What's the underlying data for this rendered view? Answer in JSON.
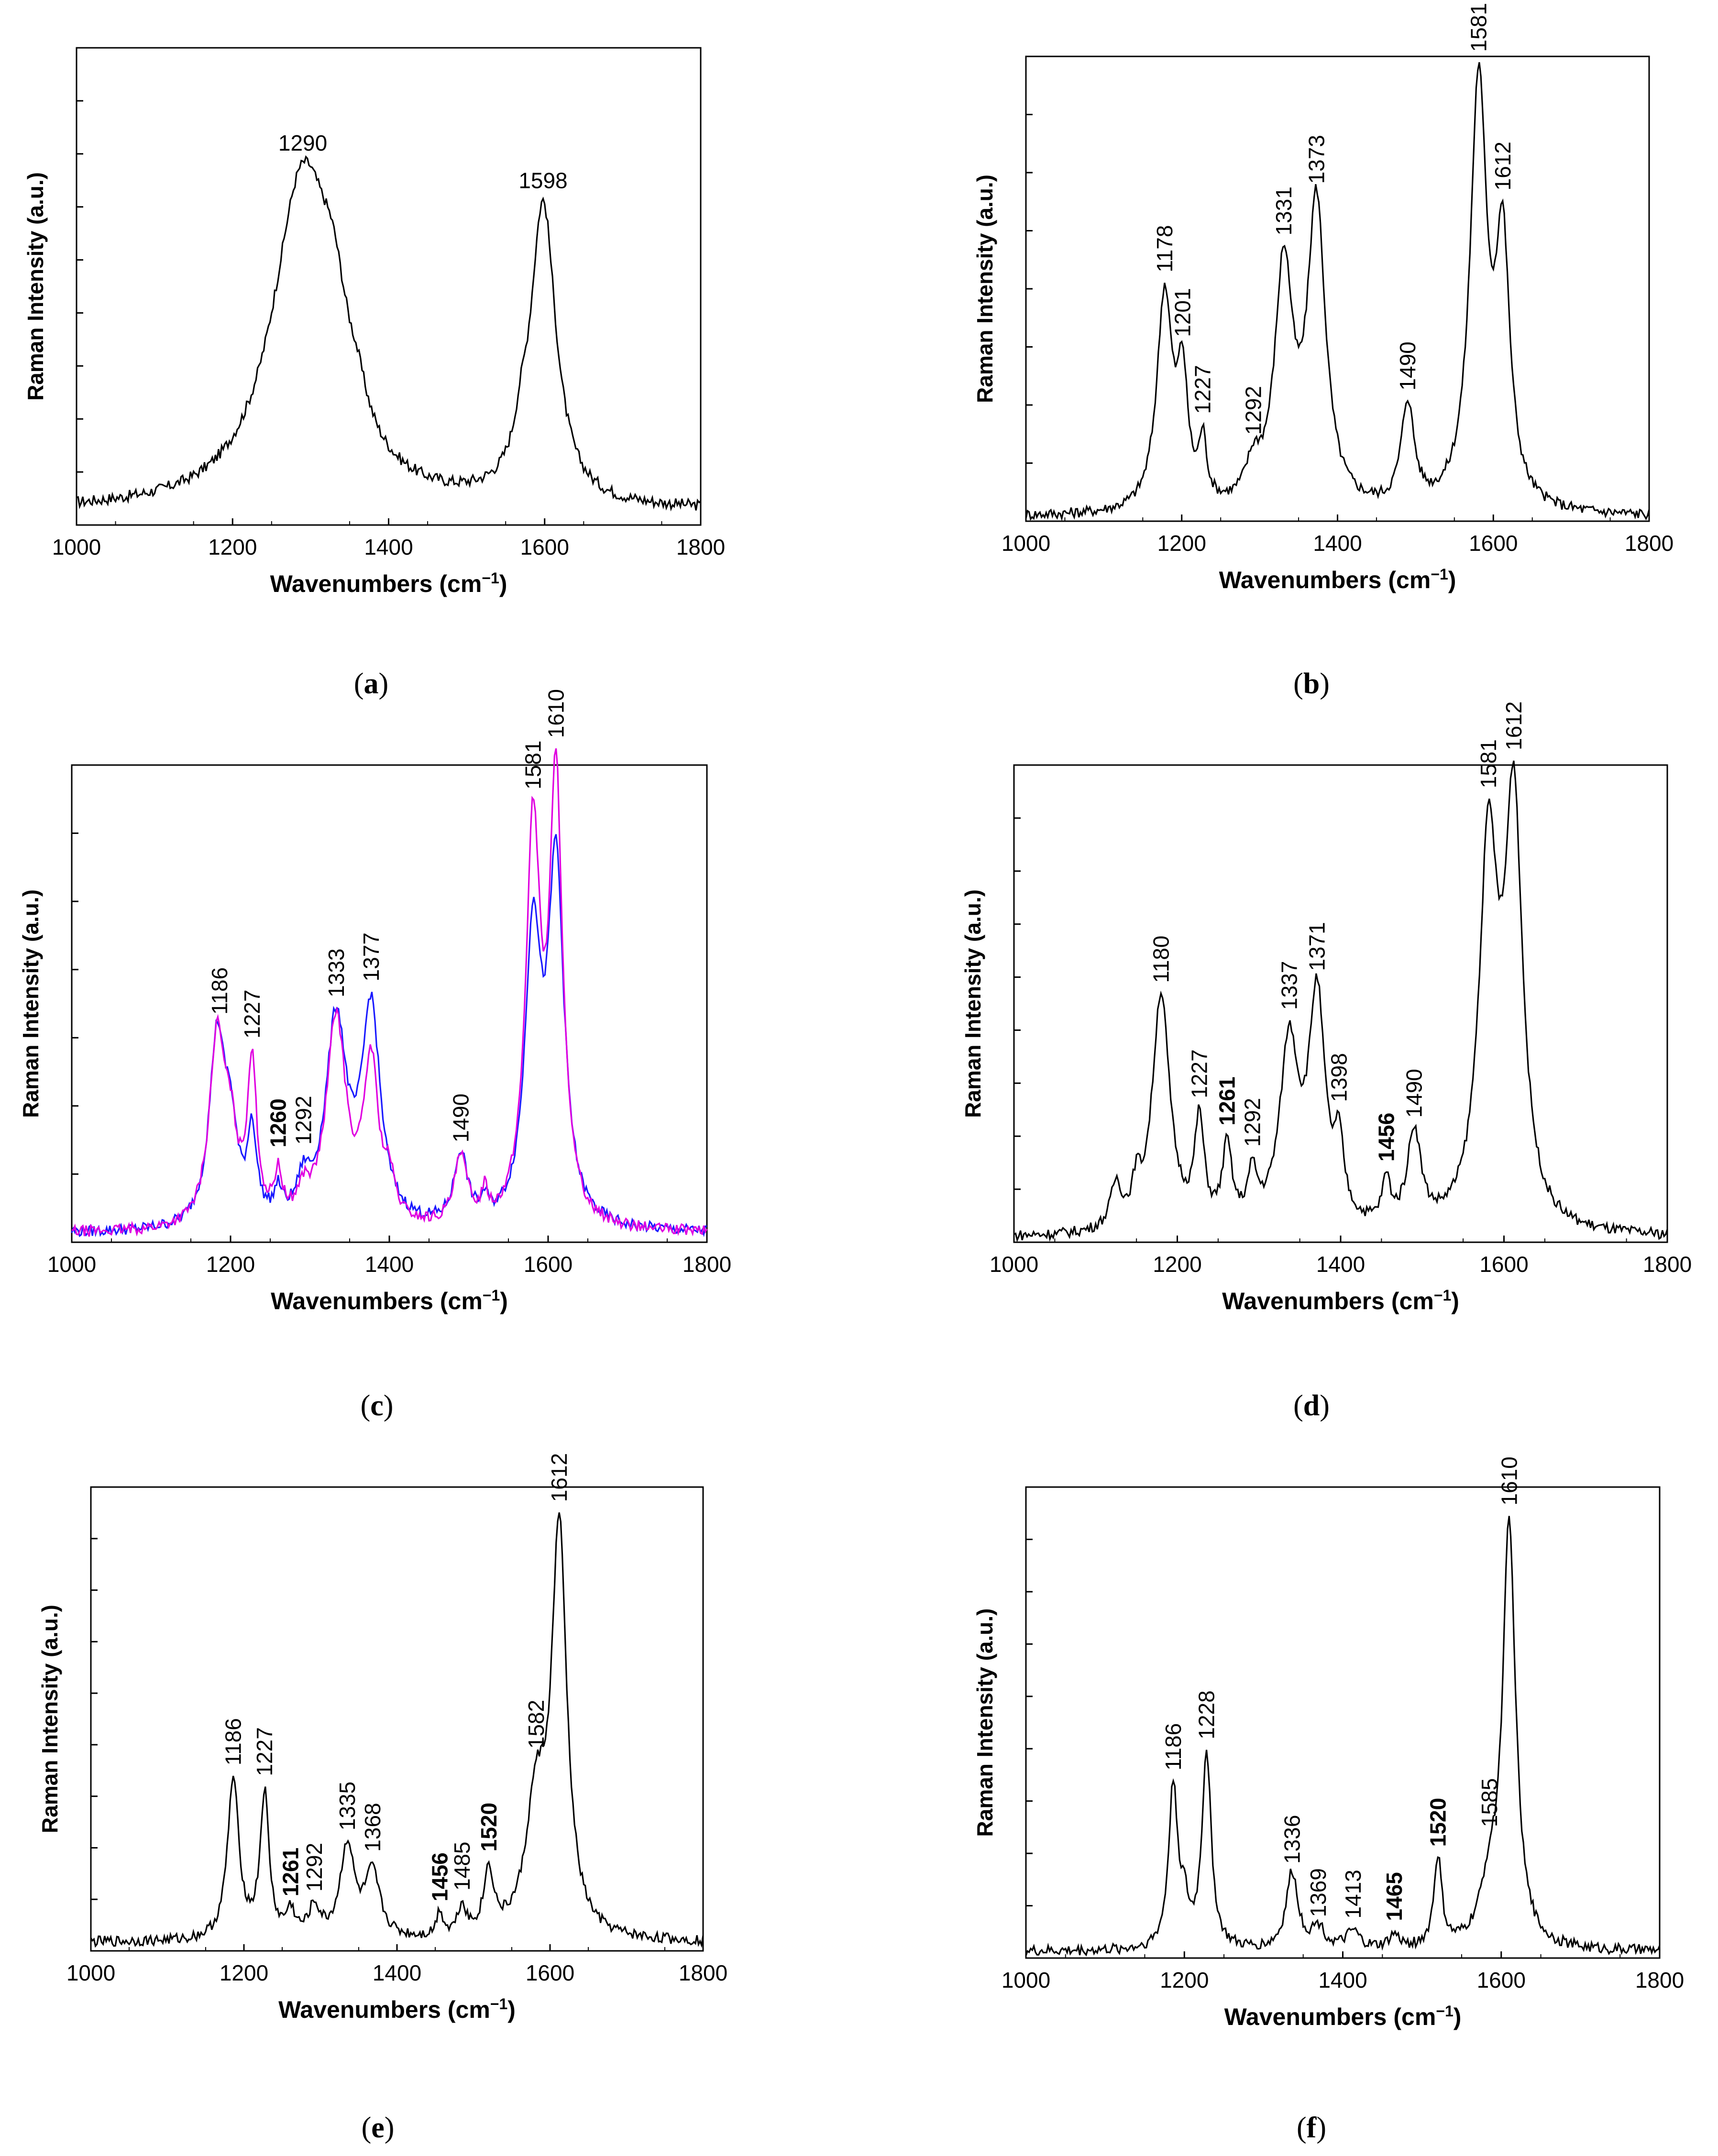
{
  "figure": {
    "panels": [
      {
        "id": "a",
        "caption_open": "(",
        "caption_letter": "a",
        "caption_close": ")"
      },
      {
        "id": "b",
        "caption_open": "(",
        "caption_letter": "b",
        "caption_close": ")"
      },
      {
        "id": "c",
        "caption_open": "(",
        "caption_letter": "c",
        "caption_close": ")"
      },
      {
        "id": "d",
        "caption_open": "(",
        "caption_letter": "d",
        "caption_close": ")"
      },
      {
        "id": "e",
        "caption_open": "(",
        "caption_letter": "e",
        "caption_close": ")"
      },
      {
        "id": "f",
        "caption_open": "(",
        "caption_letter": "f",
        "caption_close": ")"
      }
    ]
  },
  "chart_data": [
    {
      "panel": "a",
      "type": "line",
      "title": "",
      "xlabel": "Wavenumbers (cm",
      "xlabel_sup": "−1",
      "xlabel_close": ")",
      "ylabel": "Raman Intensity (a.u.)",
      "xlim": [
        1000,
        1800
      ],
      "ylim": [
        0,
        1.05
      ],
      "x_ticks": [
        1000,
        1200,
        1400,
        1600,
        1800
      ],
      "y_minor_ticks": 8,
      "series": [
        {
          "color": "#000000",
          "baseline": 0.03,
          "peaks": [
            [
              1290,
              0.72,
              48
            ],
            [
              1330,
              0.18,
              22
            ],
            [
              1360,
              0.06,
              15
            ],
            [
              1598,
              0.66,
              20
            ],
            [
              1570,
              0.06,
              10
            ]
          ]
        }
      ],
      "annotations": [
        {
          "x": 1290,
          "text": "1290",
          "bold": false,
          "vertical": false
        },
        {
          "x": 1598,
          "text": "1598",
          "bold": false,
          "vertical": false
        }
      ]
    },
    {
      "panel": "b",
      "type": "line",
      "title": "",
      "xlabel": "Wavenumbers (cm",
      "xlabel_sup": "−1",
      "xlabel_close": ")",
      "ylabel": "Raman Intensity (a.u.)",
      "xlim": [
        1000,
        1800
      ],
      "ylim": [
        0,
        1.08
      ],
      "x_ticks": [
        1000,
        1200,
        1400,
        1600,
        1800
      ],
      "y_minor_ticks": 7,
      "series": [
        {
          "color": "#000000",
          "baseline": 0.01,
          "peaks": [
            [
              1178,
              0.5,
              12
            ],
            [
              1201,
              0.28,
              8
            ],
            [
              1227,
              0.14,
              6
            ],
            [
              1292,
              0.08,
              12
            ],
            [
              1331,
              0.55,
              14
            ],
            [
              1373,
              0.7,
              14
            ],
            [
              1490,
              0.24,
              10
            ],
            [
              1581,
              0.98,
              13
            ],
            [
              1612,
              0.58,
              11
            ]
          ]
        }
      ],
      "annotations": [
        {
          "x": 1178,
          "text": "1178",
          "bold": false,
          "vertical": true
        },
        {
          "x": 1201,
          "text": "1201",
          "bold": false,
          "vertical": true
        },
        {
          "x": 1227,
          "text": "1227",
          "bold": false,
          "vertical": true
        },
        {
          "x": 1292,
          "text": "1292",
          "bold": false,
          "vertical": true
        },
        {
          "x": 1331,
          "text": "1331",
          "bold": false,
          "vertical": true
        },
        {
          "x": 1373,
          "text": "1373",
          "bold": false,
          "vertical": true
        },
        {
          "x": 1490,
          "text": "1490",
          "bold": false,
          "vertical": true
        },
        {
          "x": 1581,
          "text": "1581",
          "bold": false,
          "vertical": true
        },
        {
          "x": 1612,
          "text": "1612",
          "bold": false,
          "vertical": true
        }
      ]
    },
    {
      "panel": "c",
      "type": "line",
      "title": "",
      "xlabel": "Wavenumbers (cm",
      "xlabel_sup": "−1",
      "xlabel_close": ")",
      "ylabel": "Raman Intensity (a.u.)",
      "xlim": [
        1000,
        1800
      ],
      "ylim": [
        0,
        1.08
      ],
      "x_ticks": [
        1000,
        1200,
        1400,
        1600,
        1800
      ],
      "y_minor_ticks": 6,
      "series": [
        {
          "color": "#1a1aff",
          "baseline": 0.02,
          "peaks": [
            [
              1183,
              0.42,
              12
            ],
            [
              1200,
              0.18,
              10
            ],
            [
              1227,
              0.2,
              7
            ],
            [
              1260,
              0.06,
              6
            ],
            [
              1292,
              0.08,
              10
            ],
            [
              1333,
              0.46,
              16
            ],
            [
              1377,
              0.48,
              14
            ],
            [
              1490,
              0.16,
              10
            ],
            [
              1520,
              0.04,
              5
            ],
            [
              1581,
              0.64,
              12
            ],
            [
              1610,
              0.8,
              12
            ]
          ]
        },
        {
          "color": "#e000e0",
          "baseline": 0.02,
          "peaks": [
            [
              1183,
              0.42,
              12
            ],
            [
              1200,
              0.16,
              10
            ],
            [
              1227,
              0.36,
              7
            ],
            [
              1260,
              0.1,
              6
            ],
            [
              1292,
              0.06,
              10
            ],
            [
              1333,
              0.47,
              15
            ],
            [
              1377,
              0.36,
              11
            ],
            [
              1400,
              0.08,
              8
            ],
            [
              1490,
              0.15,
              10
            ],
            [
              1520,
              0.06,
              5
            ],
            [
              1581,
              0.88,
              11
            ],
            [
              1610,
              0.98,
              10
            ]
          ]
        }
      ],
      "annotations": [
        {
          "x": 1186,
          "text": "1186",
          "bold": false,
          "vertical": true
        },
        {
          "x": 1227,
          "text": "1227",
          "bold": false,
          "vertical": true
        },
        {
          "x": 1260,
          "text": "1260",
          "bold": true,
          "vertical": true
        },
        {
          "x": 1292,
          "text": "1292",
          "bold": false,
          "vertical": true
        },
        {
          "x": 1333,
          "text": "1333",
          "bold": false,
          "vertical": true
        },
        {
          "x": 1377,
          "text": "1377",
          "bold": false,
          "vertical": true
        },
        {
          "x": 1490,
          "text": "1490",
          "bold": false,
          "vertical": true
        },
        {
          "x": 1581,
          "text": "1581",
          "bold": false,
          "vertical": true
        },
        {
          "x": 1610,
          "text": "1610",
          "bold": false,
          "vertical": true
        }
      ]
    },
    {
      "panel": "d",
      "type": "line",
      "title": "",
      "xlabel": "Wavenumbers (cm",
      "xlabel_sup": "−1",
      "xlabel_close": ")",
      "ylabel": "Raman Intensity (a.u.)",
      "xlim": [
        1000,
        1800
      ],
      "ylim": [
        0,
        1.1
      ],
      "x_ticks": [
        1000,
        1200,
        1400,
        1600,
        1800
      ],
      "y_minor_ticks": 8,
      "series": [
        {
          "color": "#000000",
          "baseline": 0.01,
          "peaks": [
            [
              1125,
              0.1,
              8
            ],
            [
              1150,
              0.08,
              6
            ],
            [
              1180,
              0.55,
              13
            ],
            [
              1227,
              0.24,
              7
            ],
            [
              1261,
              0.18,
              7
            ],
            [
              1292,
              0.11,
              7
            ],
            [
              1337,
              0.42,
              14
            ],
            [
              1371,
              0.52,
              12
            ],
            [
              1398,
              0.16,
              7
            ],
            [
              1456,
              0.1,
              6
            ],
            [
              1490,
              0.22,
              10
            ],
            [
              1581,
              0.85,
              14
            ],
            [
              1612,
              0.95,
              13
            ]
          ]
        }
      ],
      "annotations": [
        {
          "x": 1180,
          "text": "1180",
          "bold": false,
          "vertical": true
        },
        {
          "x": 1227,
          "text": "1227",
          "bold": false,
          "vertical": true
        },
        {
          "x": 1261,
          "text": "1261",
          "bold": true,
          "vertical": true
        },
        {
          "x": 1292,
          "text": "1292",
          "bold": false,
          "vertical": true
        },
        {
          "x": 1337,
          "text": "1337",
          "bold": false,
          "vertical": true
        },
        {
          "x": 1371,
          "text": "1371",
          "bold": false,
          "vertical": true
        },
        {
          "x": 1398,
          "text": "1398",
          "bold": false,
          "vertical": true
        },
        {
          "x": 1456,
          "text": "1456",
          "bold": true,
          "vertical": true
        },
        {
          "x": 1490,
          "text": "1490",
          "bold": false,
          "vertical": true
        },
        {
          "x": 1581,
          "text": "1581",
          "bold": false,
          "vertical": true
        },
        {
          "x": 1612,
          "text": "1612",
          "bold": false,
          "vertical": true
        }
      ]
    },
    {
      "panel": "e",
      "type": "line",
      "title": "",
      "xlabel": "Wavenumbers (cm",
      "xlabel_sup": "−1",
      "xlabel_close": ")",
      "ylabel": "Raman Intensity (a.u.)",
      "xlim": [
        1000,
        1800
      ],
      "ylim": [
        0,
        1.1
      ],
      "x_ticks": [
        1000,
        1200,
        1400,
        1600,
        1800
      ],
      "y_minor_ticks": 8,
      "series": [
        {
          "color": "#000000",
          "baseline": 0.02,
          "peaks": [
            [
              1186,
              0.38,
              9
            ],
            [
              1227,
              0.34,
              7
            ],
            [
              1261,
              0.06,
              7
            ],
            [
              1292,
              0.07,
              9
            ],
            [
              1335,
              0.22,
              11
            ],
            [
              1368,
              0.15,
              12
            ],
            [
              1456,
              0.06,
              5
            ],
            [
              1485,
              0.07,
              7
            ],
            [
              1520,
              0.15,
              8
            ],
            [
              1582,
              0.3,
              16
            ],
            [
              1612,
              0.95,
              12
            ]
          ]
        }
      ],
      "annotations": [
        {
          "x": 1186,
          "text": "1186",
          "bold": false,
          "vertical": true
        },
        {
          "x": 1227,
          "text": "1227",
          "bold": false,
          "vertical": true
        },
        {
          "x": 1261,
          "text": "1261",
          "bold": true,
          "vertical": true
        },
        {
          "x": 1292,
          "text": "1292",
          "bold": false,
          "vertical": true
        },
        {
          "x": 1335,
          "text": "1335",
          "bold": false,
          "vertical": true
        },
        {
          "x": 1368,
          "text": "1368",
          "bold": false,
          "vertical": true
        },
        {
          "x": 1456,
          "text": "1456",
          "bold": true,
          "vertical": true
        },
        {
          "x": 1485,
          "text": "1485",
          "bold": false,
          "vertical": true
        },
        {
          "x": 1520,
          "text": "1520",
          "bold": true,
          "vertical": true
        },
        {
          "x": 1582,
          "text": "1582",
          "bold": false,
          "vertical": true
        },
        {
          "x": 1612,
          "text": "1612",
          "bold": false,
          "vertical": true
        }
      ]
    },
    {
      "panel": "f",
      "type": "line",
      "title": "",
      "xlabel": "Wavenumbers (cm",
      "xlabel_sup": "−1",
      "xlabel_close": ")",
      "ylabel": "Raman Intensity (a.u.)",
      "xlim": [
        1000,
        1800
      ],
      "ylim": [
        0,
        1.1
      ],
      "x_ticks": [
        1000,
        1200,
        1400,
        1600,
        1800
      ],
      "y_minor_ticks": 8,
      "series": [
        {
          "color": "#000000",
          "baseline": 0.015,
          "peaks": [
            [
              1186,
              0.38,
              7
            ],
            [
              1200,
              0.08,
              6
            ],
            [
              1228,
              0.46,
              7
            ],
            [
              1336,
              0.18,
              9
            ],
            [
              1369,
              0.05,
              10
            ],
            [
              1413,
              0.04,
              10
            ],
            [
              1465,
              0.03,
              8
            ],
            [
              1520,
              0.21,
              6
            ],
            [
              1585,
              0.12,
              14
            ],
            [
              1610,
              0.98,
              10
            ]
          ]
        }
      ],
      "annotations": [
        {
          "x": 1186,
          "text": "1186",
          "bold": false,
          "vertical": true
        },
        {
          "x": 1228,
          "text": "1228",
          "bold": false,
          "vertical": true
        },
        {
          "x": 1336,
          "text": "1336",
          "bold": false,
          "vertical": true
        },
        {
          "x": 1369,
          "text": "1369",
          "bold": false,
          "vertical": true
        },
        {
          "x": 1413,
          "text": "1413",
          "bold": false,
          "vertical": true
        },
        {
          "x": 1465,
          "text": "1465",
          "bold": true,
          "vertical": true
        },
        {
          "x": 1520,
          "text": "1520",
          "bold": true,
          "vertical": true
        },
        {
          "x": 1585,
          "text": "1585",
          "bold": false,
          "vertical": true
        },
        {
          "x": 1610,
          "text": "1610",
          "bold": false,
          "vertical": true
        }
      ]
    }
  ]
}
